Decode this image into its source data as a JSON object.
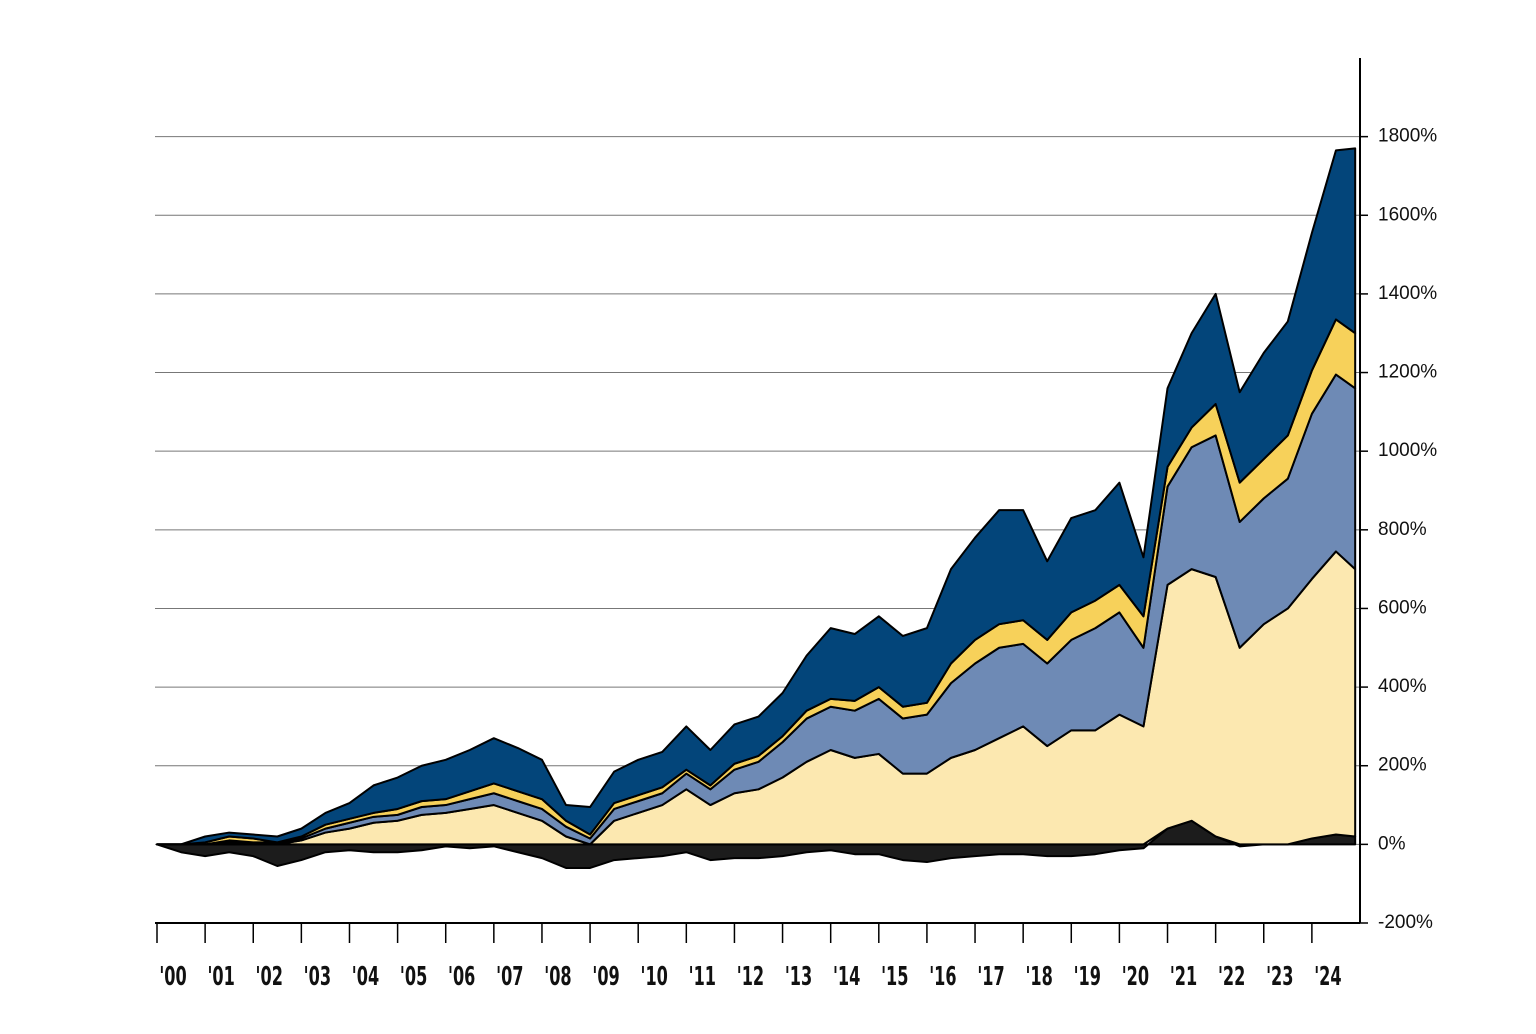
{
  "chart_data": {
    "type": "stacked-area",
    "x": [
      2000,
      2000.5,
      2001,
      2001.5,
      2002,
      2002.5,
      2003,
      2003.5,
      2004,
      2004.5,
      2005,
      2005.5,
      2006,
      2006.5,
      2007,
      2007.5,
      2008,
      2008.5,
      2009,
      2009.5,
      2010,
      2010.5,
      2011,
      2011.5,
      2012,
      2012.5,
      2013,
      2013.5,
      2014,
      2014.5,
      2015,
      2015.5,
      2016,
      2016.5,
      2017,
      2017.5,
      2018,
      2018.5,
      2019,
      2019.5,
      2020,
      2020.5,
      2021,
      2021.5,
      2022,
      2022.5,
      2023,
      2023.5,
      2024,
      2024.5,
      2024.9
    ],
    "series": [
      {
        "color": "#1c1c1c",
        "values": [
          0,
          -20,
          -30,
          -20,
          -30,
          -55,
          -40,
          -20,
          -15,
          -20,
          -20,
          -15,
          -5,
          -10,
          -5,
          -20,
          -35,
          -60,
          -60,
          -40,
          -35,
          -30,
          -20,
          -40,
          -35,
          -35,
          -30,
          -20,
          -15,
          -25,
          -25,
          -40,
          -45,
          -35,
          -30,
          -25,
          -25,
          -30,
          -30,
          -25,
          -15,
          -10,
          40,
          60,
          20,
          -5,
          0,
          0,
          15,
          25,
          20
        ]
      },
      {
        "color": "#fce8b0",
        "values": [
          0,
          0,
          0,
          5,
          0,
          0,
          10,
          30,
          40,
          55,
          60,
          75,
          80,
          90,
          100,
          80,
          60,
          20,
          0,
          60,
          80,
          100,
          140,
          100,
          130,
          140,
          170,
          210,
          240,
          220,
          230,
          180,
          180,
          220,
          240,
          270,
          300,
          250,
          290,
          290,
          330,
          300,
          620,
          640,
          660,
          500,
          560,
          600,
          660,
          720,
          680
        ]
      },
      {
        "color": "#6e8ab5",
        "values": [
          0,
          0,
          0,
          5,
          5,
          5,
          5,
          10,
          15,
          15,
          15,
          20,
          20,
          25,
          30,
          30,
          30,
          25,
          15,
          30,
          30,
          30,
          40,
          40,
          60,
          70,
          90,
          110,
          110,
          120,
          140,
          140,
          150,
          190,
          220,
          230,
          210,
          210,
          230,
          260,
          260,
          200,
          250,
          310,
          360,
          320,
          320,
          330,
          420,
          450,
          460
        ]
      },
      {
        "color": "#f7d15a",
        "values": [
          0,
          0,
          5,
          10,
          10,
          0,
          5,
          10,
          10,
          10,
          15,
          15,
          15,
          20,
          25,
          25,
          25,
          15,
          10,
          15,
          15,
          15,
          10,
          10,
          15,
          15,
          15,
          20,
          20,
          25,
          30,
          30,
          30,
          50,
          60,
          60,
          60,
          60,
          70,
          70,
          70,
          80,
          50,
          50,
          80,
          100,
          100,
          110,
          110,
          140,
          140
        ]
      },
      {
        "color": "#03457a",
        "values": [
          0,
          0,
          15,
          10,
          10,
          15,
          20,
          30,
          40,
          70,
          80,
          90,
          100,
          105,
          115,
          110,
          100,
          40,
          70,
          80,
          90,
          90,
          110,
          90,
          100,
          100,
          110,
          140,
          180,
          170,
          180,
          180,
          190,
          240,
          260,
          290,
          280,
          200,
          240,
          230,
          260,
          150,
          200,
          240,
          280,
          230,
          270,
          290,
          350,
          430,
          470
        ]
      }
    ],
    "xlim": [
      2000,
      2025
    ],
    "xticks": [
      {
        "value": 2000,
        "label": "'00"
      },
      {
        "value": 2001,
        "label": "'01"
      },
      {
        "value": 2002,
        "label": "'02"
      },
      {
        "value": 2003,
        "label": "'03"
      },
      {
        "value": 2004,
        "label": "'04"
      },
      {
        "value": 2005,
        "label": "'05"
      },
      {
        "value": 2006,
        "label": "'06"
      },
      {
        "value": 2007,
        "label": "'07"
      },
      {
        "value": 2008,
        "label": "'08"
      },
      {
        "value": 2009,
        "label": "'09"
      },
      {
        "value": 2010,
        "label": "'10"
      },
      {
        "value": 2011,
        "label": "'11"
      },
      {
        "value": 2012,
        "label": "'12"
      },
      {
        "value": 2013,
        "label": "'13"
      },
      {
        "value": 2014,
        "label": "'14"
      },
      {
        "value": 2015,
        "label": "'15"
      },
      {
        "value": 2016,
        "label": "'16"
      },
      {
        "value": 2017,
        "label": "'17"
      },
      {
        "value": 2018,
        "label": "'18"
      },
      {
        "value": 2019,
        "label": "'19"
      },
      {
        "value": 2020,
        "label": "'20"
      },
      {
        "value": 2021,
        "label": "'21"
      },
      {
        "value": 2022,
        "label": "'22"
      },
      {
        "value": 2023,
        "label": "'23"
      },
      {
        "value": 2024,
        "label": "'24"
      }
    ],
    "ylim": [
      -200,
      2000
    ],
    "yticks": [
      {
        "value": -200,
        "label": "-200%"
      },
      {
        "value": 0,
        "label": "0%"
      },
      {
        "value": 200,
        "label": "200%"
      },
      {
        "value": 400,
        "label": "400%"
      },
      {
        "value": 600,
        "label": "600%"
      },
      {
        "value": 800,
        "label": "800%"
      },
      {
        "value": 1000,
        "label": "1000%"
      },
      {
        "value": 1200,
        "label": "1200%"
      },
      {
        "value": 1400,
        "label": "1400%"
      },
      {
        "value": 1600,
        "label": "1600%"
      },
      {
        "value": 1800,
        "label": "1800%"
      }
    ],
    "grid": true,
    "y_axis_side": "right"
  }
}
